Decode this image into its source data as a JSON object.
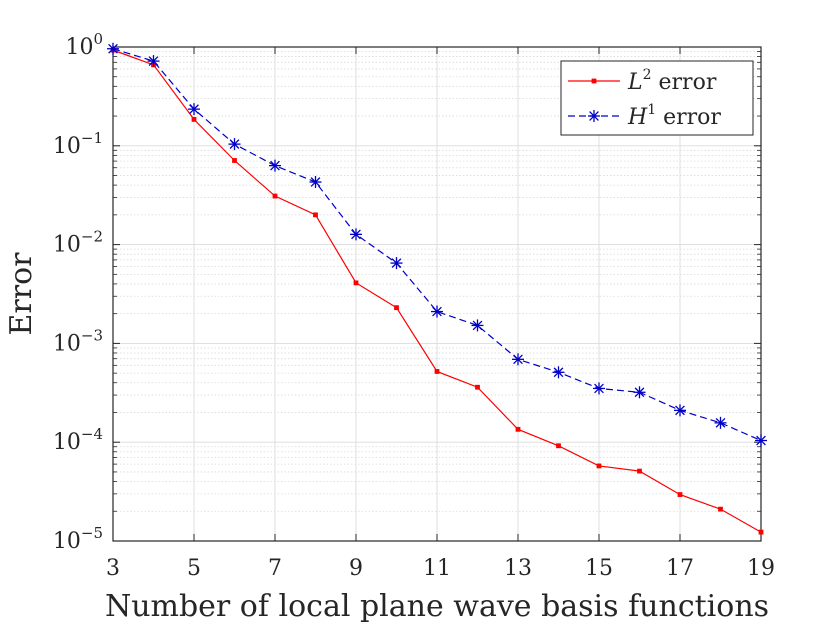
{
  "chart_data": {
    "type": "line",
    "title": "",
    "xlabel": "Number of local plane wave basis functions",
    "ylabel": "Error",
    "x_scale": "linear",
    "y_scale": "log",
    "xlim": [
      3,
      19
    ],
    "ylim": [
      1e-05,
      1
    ],
    "grid": true,
    "minor_grid": true,
    "legend_position": "top-right",
    "x_ticks": [
      3,
      5,
      7,
      9,
      11,
      13,
      15,
      17,
      19
    ],
    "y_ticks": [
      {
        "value": 1e-05,
        "base": "10",
        "exp": "−5"
      },
      {
        "value": 0.0001,
        "base": "10",
        "exp": "−4"
      },
      {
        "value": 0.001,
        "base": "10",
        "exp": "−3"
      },
      {
        "value": 0.01,
        "base": "10",
        "exp": "−2"
      },
      {
        "value": 0.1,
        "base": "10",
        "exp": "−1"
      },
      {
        "value": 1,
        "base": "10",
        "exp": "0"
      }
    ],
    "x": [
      3,
      4,
      5,
      6,
      7,
      8,
      9,
      10,
      11,
      12,
      13,
      14,
      15,
      16,
      17,
      18,
      19
    ],
    "series": [
      {
        "name_base": "L",
        "name_sup": "2",
        "name_rest": " error",
        "color": "#ff0000",
        "line_style": "solid",
        "marker": "dot",
        "values": [
          0.93,
          0.66,
          0.185,
          0.071,
          0.031,
          0.02,
          0.0041,
          0.0023,
          0.00052,
          0.00036,
          0.000135,
          9.2e-05,
          5.75e-05,
          5.1e-05,
          2.95e-05,
          2.1e-05,
          1.23e-05
        ]
      },
      {
        "name_base": "H",
        "name_sup": "1",
        "name_rest": " error",
        "color": "#0000c8",
        "line_style": "dashed",
        "marker": "asterisk",
        "values": [
          0.96,
          0.72,
          0.235,
          0.104,
          0.063,
          0.043,
          0.0127,
          0.0065,
          0.0021,
          0.00152,
          0.00069,
          0.00051,
          0.00035,
          0.00032,
          0.00021,
          0.000157,
          0.000104
        ]
      }
    ]
  }
}
